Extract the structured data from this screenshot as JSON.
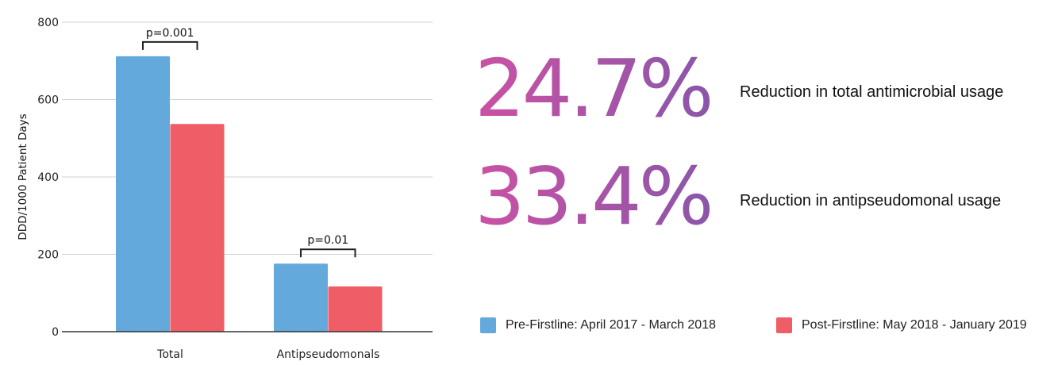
{
  "chart_data": {
    "type": "bar",
    "title": "",
    "xlabel": "",
    "ylabel": "DDD/1000 Patient Days",
    "ylim": [
      0,
      800
    ],
    "yticks": [
      0,
      200,
      400,
      600,
      800
    ],
    "ytick_labels": [
      "0",
      "200",
      "400",
      "600",
      "800"
    ],
    "grid": true,
    "categories": [
      "Total",
      "Antipseudomonals"
    ],
    "series": [
      {
        "name": "Pre-Firstline: April 2017 - March 2018",
        "color": "#63a9dc",
        "values": [
          712,
          176
        ]
      },
      {
        "name": "Post-Firstline: May 2018 - January 2019",
        "color": "#ef5d66",
        "values": [
          537,
          117
        ]
      }
    ],
    "annotations": [
      "p=0.001",
      "p=0.01"
    ],
    "legend_position": "bottom-right"
  },
  "stats": [
    {
      "value": "24.7%",
      "label": "Reduction in total antimicrobial usage"
    },
    {
      "value": "33.4%",
      "label": "Reduction in antipseudomonal usage"
    }
  ]
}
